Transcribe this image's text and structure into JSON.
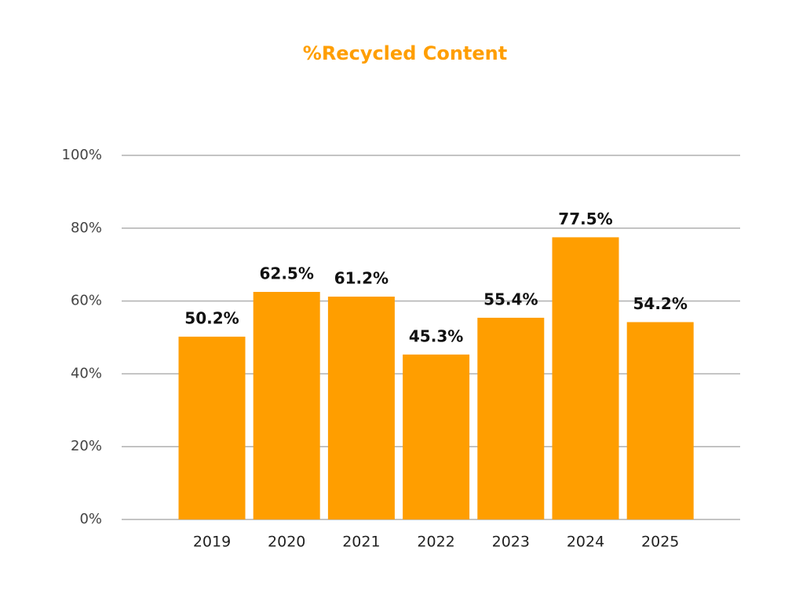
{
  "chart_data": {
    "type": "bar",
    "title": "%Recycled Content",
    "categories": [
      "2019",
      "2020",
      "2021",
      "2022",
      "2023",
      "2024",
      "2025"
    ],
    "values": [
      50.2,
      62.5,
      61.2,
      45.3,
      55.4,
      77.5,
      54.2
    ],
    "value_labels": [
      "50.2%",
      "62.5%",
      "61.2%",
      "45.3%",
      "55.4%",
      "77.5%",
      "54.2%"
    ],
    "color": "#ff9e00",
    "ylim": [
      0,
      100
    ],
    "yticks": [
      {
        "value": 0,
        "label": "0%"
      },
      {
        "value": 20,
        "label": "20%"
      },
      {
        "value": 40,
        "label": "40%"
      },
      {
        "value": 60,
        "label": "60%"
      },
      {
        "value": 80,
        "label": "80%"
      },
      {
        "value": 100,
        "label": "100%"
      }
    ],
    "grid": true
  }
}
